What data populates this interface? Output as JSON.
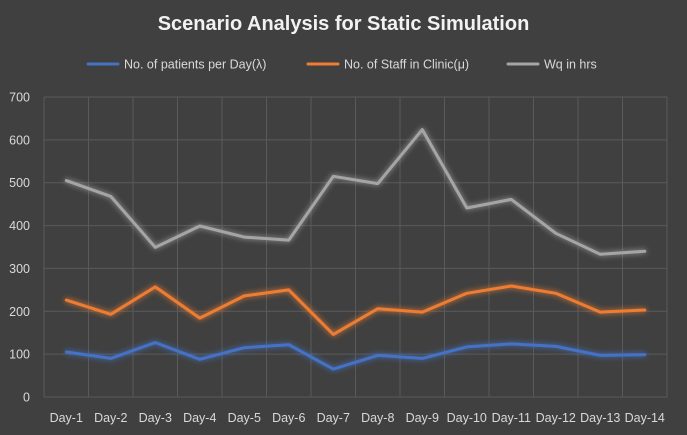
{
  "chart_data": {
    "type": "line",
    "title": "Scenario Analysis for Static Simulation",
    "xlabel": "",
    "ylabel": "",
    "ylim": [
      0,
      700
    ],
    "y_ticks": [
      "0",
      "100",
      "200",
      "300",
      "400",
      "500",
      "600",
      "700"
    ],
    "grid": true,
    "legend_placement": "top-center",
    "categories": [
      "Day-1",
      "Day-2",
      "Day-3",
      "Day-4",
      "Day-5",
      "Day-6",
      "Day-7",
      "Day-8",
      "Day-9",
      "Day-10",
      "Day-11",
      "Day-12",
      "Day-13",
      "Day-14"
    ],
    "series": [
      {
        "name": "No. of patients per Day(λ)",
        "color": "#4472c4",
        "values": [
          105,
          90,
          127,
          88,
          115,
          122,
          65,
          97,
          90,
          117,
          124,
          118,
          97,
          99
        ]
      },
      {
        "name": "No. of Staff in Clinic(μ)",
        "color": "#ed7d31",
        "values": [
          226,
          193,
          257,
          184,
          236,
          250,
          146,
          206,
          198,
          242,
          259,
          242,
          198,
          203
        ]
      },
      {
        "name": "Wq in hrs",
        "color": "#a5a5a5",
        "values": [
          505,
          468,
          349,
          399,
          373,
          366,
          515,
          498,
          624,
          441,
          461,
          382,
          333,
          340
        ]
      }
    ]
  }
}
